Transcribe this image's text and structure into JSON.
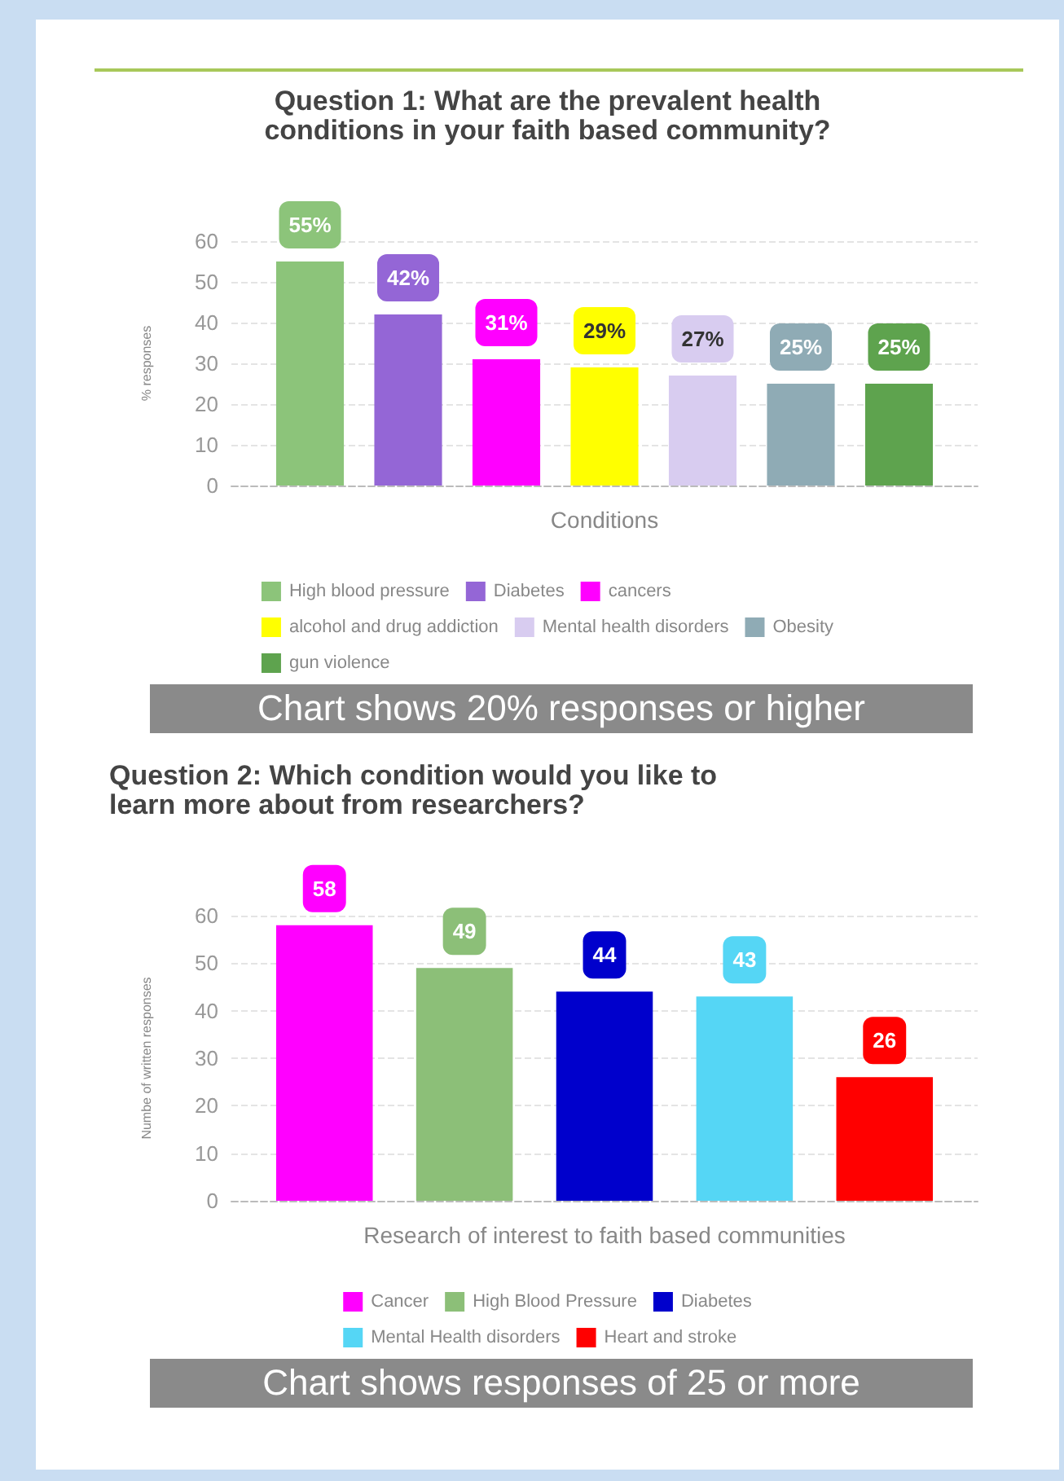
{
  "chart_data": [
    {
      "type": "bar",
      "title": "Question 1: What are the prevalent health\nconditions in your faith based community?",
      "xlabel": "Conditions",
      "ylabel": "% responses",
      "categories": [
        null
      ],
      "ylim": [
        0,
        60
      ],
      "yticks": [
        0,
        10,
        20,
        30,
        40,
        50,
        60
      ],
      "grid": "y",
      "legend": "bottom",
      "tick_labels": "y",
      "annotations": [
        "Chart shows 20% responses or higher"
      ],
      "series": [
        {
          "name": "High blood pressure",
          "color": "#8cc47a",
          "values": [
            55
          ],
          "value_labels": [
            "55%"
          ]
        },
        {
          "name": "Diabetes",
          "color": "#9466d6",
          "values": [
            42
          ],
          "value_labels": [
            "42%"
          ]
        },
        {
          "name": "cancers",
          "color": "#ff00ff",
          "values": [
            31
          ],
          "value_labels": [
            "31%"
          ]
        },
        {
          "name": "alcohol and drug addiction",
          "color": "#ffff00",
          "values": [
            29
          ],
          "value_labels": [
            "29%"
          ]
        },
        {
          "name": "Mental health disorders",
          "color": "#d8ccf0",
          "values": [
            27
          ],
          "value_labels": [
            "27%"
          ]
        },
        {
          "name": "Obesity",
          "color": "#8fabb5",
          "values": [
            25
          ],
          "value_labels": [
            "25%"
          ]
        },
        {
          "name": "gun violence",
          "color": "#5ea34e",
          "values": [
            25
          ],
          "value_labels": [
            "25%"
          ]
        }
      ]
    },
    {
      "type": "bar",
      "title": "Question 2: Which condition would you like to\nlearn more about from researchers?",
      "xlabel": "Research of interest to faith based communities",
      "ylabel": "Numbe of written responses",
      "categories": [
        null
      ],
      "ylim": [
        0,
        60
      ],
      "yticks": [
        0,
        10,
        20,
        30,
        40,
        50,
        60
      ],
      "grid": "y",
      "legend": "bottom",
      "tick_labels": "y",
      "data_labels": true,
      "annotations": [
        "Chart shows responses of 25 or more"
      ],
      "series": [
        {
          "name": "Cancer",
          "color": "#ff00ff",
          "values": [
            58
          ]
        },
        {
          "name": "High Blood Pressure",
          "color": "#8cbf78",
          "values": [
            49
          ]
        },
        {
          "name": "Diabetes",
          "color": "#0000cc",
          "values": [
            44
          ]
        },
        {
          "name": "Mental Health disorders",
          "color": "#55d6f5",
          "values": [
            43
          ]
        },
        {
          "name": "Heart and stroke",
          "color": "#ff0000",
          "values": [
            26
          ]
        }
      ]
    }
  ]
}
